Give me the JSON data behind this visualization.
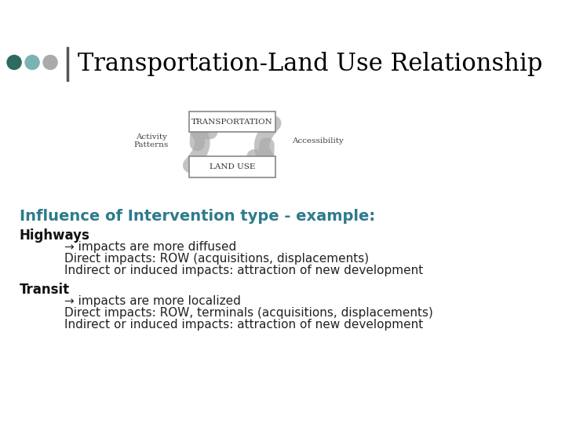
{
  "title": "Transportation-Land Use Relationship",
  "title_fontsize": 22,
  "title_color": "#000000",
  "title_font": "serif",
  "dot_colors": [
    "#2d6b5e",
    "#7ab3b3",
    "#aaaaaa"
  ],
  "transport_label": "TRANSPORTATION",
  "landuse_label": "LAND USE",
  "activity_label": "Activity\nPatterns",
  "accessibility_label": "Accessibility",
  "influence_text": "Influence of Intervention type - example:",
  "influence_color": "#2d7b8c",
  "influence_fontsize": 14,
  "highways_header": "Highways",
  "highways_lines": [
    "→ impacts are more diffused",
    "Direct impacts: ROW (acquisitions, displacements)",
    "Indirect or induced impacts: attraction of new development"
  ],
  "transit_header": "Transit",
  "transit_lines": [
    "→ impacts are more localized",
    "Direct impacts: ROW, terminals (acquisitions, displacements)",
    "Indirect or induced impacts: attraction of new development"
  ],
  "text_fontsize": 11,
  "header_fontsize": 12,
  "box_color": "#ffffff",
  "box_edgecolor": "#888888",
  "arrow_color": "#aaaaaa",
  "divider_color": "#555555",
  "background_color": "#ffffff"
}
